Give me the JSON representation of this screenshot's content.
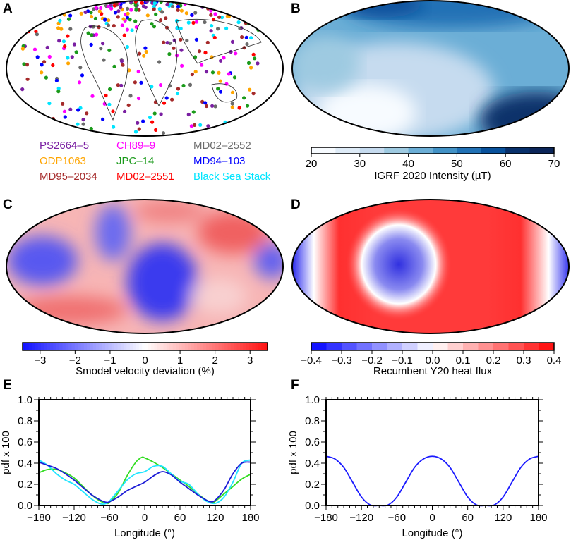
{
  "panels": {
    "a": {
      "label": "A",
      "legend": [
        {
          "name": "PS2664–5",
          "color": "#7a1fa2"
        },
        {
          "name": "CH89–9",
          "color": "#ff00ff"
        },
        {
          "name": "MD02–2552",
          "color": "#6b6b6b"
        },
        {
          "name": "ODP1063",
          "color": "#ffa500"
        },
        {
          "name": "JPC–14",
          "color": "#1a9a1a"
        },
        {
          "name": "MD94–103",
          "color": "#0000ff"
        },
        {
          "name": "MD95–2034",
          "color": "#a52a2a"
        },
        {
          "name": "MD02–2551",
          "color": "#ff0000"
        },
        {
          "name": "Black Sea Stack",
          "color": "#00e5ff"
        }
      ]
    },
    "b": {
      "label": "B",
      "colorbar_title": "IGRF 2020 Intensity (µT)",
      "ticks": [
        "20",
        "30",
        "40",
        "50",
        "60",
        "70"
      ],
      "range": [
        20,
        70
      ],
      "colors": [
        "#f7fbff",
        "#deebf7",
        "#c6dbef",
        "#9ecae1",
        "#6baed6",
        "#4292c6",
        "#2171b5",
        "#08519c",
        "#08306b",
        "#0b2559"
      ]
    },
    "c": {
      "label": "C",
      "colorbar_title": "Smodel velocity deviation (%)",
      "ticks": [
        "−3",
        "−2",
        "−1",
        "0",
        "1",
        "2",
        "3"
      ],
      "range": [
        -3.5,
        3.5
      ]
    },
    "d": {
      "label": "D",
      "colorbar_title": "Recumbent Y20 heat flux",
      "ticks": [
        "−0.4",
        "−0.3",
        "−0.2",
        "−0.1",
        "0.0",
        "0.1",
        "0.2",
        "0.3",
        "0.4"
      ],
      "range": [
        -0.4,
        0.4
      ]
    },
    "e": {
      "label": "E"
    },
    "f": {
      "label": "F"
    }
  },
  "chart_data": [
    {
      "type": "line",
      "panel": "E",
      "xlabel": "Longitude (°)",
      "ylabel": "pdf x 100",
      "xlim": [
        -180,
        180
      ],
      "ylim": [
        0,
        1.0
      ],
      "xticks": [
        "−180",
        "−120",
        "−60",
        "0",
        "60",
        "120",
        "180"
      ],
      "yticks": [
        "0.0",
        "0.2",
        "0.4",
        "0.6",
        "0.8",
        "1.0"
      ],
      "series": [
        {
          "color": "#33dd22",
          "x": [
            -180,
            -165,
            -150,
            -135,
            -120,
            -105,
            -90,
            -75,
            -65,
            -60,
            -45,
            -30,
            -15,
            -5,
            0,
            15,
            30,
            45,
            60,
            75,
            90,
            105,
            115,
            120,
            135,
            150,
            165,
            180
          ],
          "y": [
            0.31,
            0.34,
            0.34,
            0.31,
            0.26,
            0.18,
            0.1,
            0.04,
            0.02,
            0.03,
            0.12,
            0.28,
            0.41,
            0.455,
            0.45,
            0.41,
            0.36,
            0.3,
            0.24,
            0.18,
            0.11,
            0.05,
            0.03,
            0.04,
            0.11,
            0.18,
            0.25,
            0.295
          ]
        },
        {
          "color": "#22e5ff",
          "x": [
            -180,
            -165,
            -150,
            -135,
            -120,
            -105,
            -90,
            -75,
            -65,
            -60,
            -45,
            -30,
            -15,
            0,
            15,
            30,
            45,
            60,
            75,
            90,
            105,
            120,
            135,
            150,
            165,
            180
          ],
          "y": [
            0.43,
            0.38,
            0.3,
            0.24,
            0.2,
            0.13,
            0.06,
            0.015,
            0.02,
            0.04,
            0.14,
            0.24,
            0.3,
            0.32,
            0.37,
            0.37,
            0.3,
            0.23,
            0.2,
            0.11,
            0.04,
            0.02,
            0.08,
            0.22,
            0.4,
            0.43
          ]
        },
        {
          "color": "#1a1ad6",
          "x": [
            -180,
            -165,
            -150,
            -135,
            -120,
            -105,
            -90,
            -75,
            -65,
            -60,
            -45,
            -30,
            -15,
            0,
            15,
            30,
            45,
            60,
            75,
            90,
            105,
            112,
            120,
            135,
            150,
            165,
            180
          ],
          "y": [
            0.41,
            0.38,
            0.35,
            0.3,
            0.24,
            0.17,
            0.1,
            0.05,
            0.03,
            0.035,
            0.08,
            0.14,
            0.18,
            0.22,
            0.28,
            0.32,
            0.29,
            0.22,
            0.16,
            0.1,
            0.05,
            0.035,
            0.05,
            0.15,
            0.3,
            0.4,
            0.41
          ]
        }
      ]
    },
    {
      "type": "line",
      "panel": "F",
      "xlabel": "Longitude (°)",
      "ylabel": "pdf x 100",
      "xlim": [
        -180,
        180
      ],
      "ylim": [
        0,
        1.0
      ],
      "xticks": [
        "−180",
        "−120",
        "−60",
        "0",
        "60",
        "120",
        "180"
      ],
      "yticks": [
        "0.0",
        "0.2",
        "0.4",
        "0.6",
        "0.8",
        "1.0"
      ],
      "series": [
        {
          "color": "#1a1aff",
          "x": [
            -180,
            -165,
            -150,
            -135,
            -120,
            -105,
            -90,
            -75,
            -60,
            -45,
            -30,
            -15,
            0,
            15,
            30,
            45,
            60,
            75,
            90,
            105,
            120,
            135,
            150,
            165,
            180
          ],
          "y": [
            0.465,
            0.44,
            0.36,
            0.22,
            0.08,
            0.005,
            0,
            0.005,
            0.08,
            0.22,
            0.36,
            0.44,
            0.465,
            0.44,
            0.36,
            0.22,
            0.08,
            0.005,
            0,
            0.005,
            0.08,
            0.22,
            0.36,
            0.44,
            0.465
          ]
        }
      ]
    }
  ]
}
